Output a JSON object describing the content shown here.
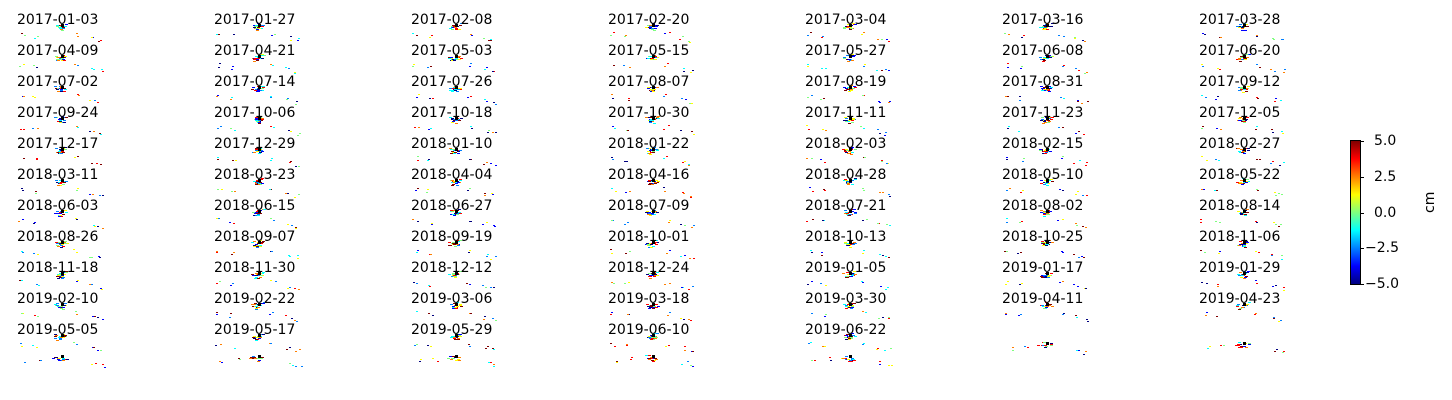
{
  "chart_data": {
    "type": "heatmap",
    "title": "",
    "panels": [
      "2017-01-03",
      "2017-01-27",
      "2017-02-08",
      "2017-02-20",
      "2017-03-04",
      "2017-03-16",
      "2017-03-28",
      "2017-04-09",
      "2017-04-21",
      "2017-05-03",
      "2017-05-15",
      "2017-05-27",
      "2017-06-08",
      "2017-06-20",
      "2017-07-02",
      "2017-07-14",
      "2017-07-26",
      "2017-08-07",
      "2017-08-19",
      "2017-08-31",
      "2017-09-12",
      "2017-09-24",
      "2017-10-06",
      "2017-10-18",
      "2017-10-30",
      "2017-11-11",
      "2017-11-23",
      "2017-12-05",
      "2017-12-17",
      "2017-12-29",
      "2018-01-10",
      "2018-01-22",
      "2018-02-03",
      "2018-02-15",
      "2018-02-27",
      "2018-03-11",
      "2018-03-23",
      "2018-04-04",
      "2018-04-16",
      "2018-04-28",
      "2018-05-10",
      "2018-05-22",
      "2018-06-03",
      "2018-06-15",
      "2018-06-27",
      "2018-07-09",
      "2018-07-21",
      "2018-08-02",
      "2018-08-14",
      "2018-08-26",
      "2018-09-07",
      "2018-09-19",
      "2018-10-01",
      "2018-10-13",
      "2018-10-25",
      "2018-11-06",
      "2018-11-18",
      "2018-11-30",
      "2018-12-12",
      "2018-12-24",
      "2019-01-05",
      "2019-01-17",
      "2019-01-29",
      "2019-02-10",
      "2019-02-22",
      "2019-03-06",
      "2019-03-18",
      "2019-03-30",
      "2019-04-11",
      "2019-04-23",
      "2019-05-05",
      "2019-05-17",
      "2019-05-29",
      "2019-06-10",
      "2019-06-22"
    ],
    "colorbar": {
      "label": "cm",
      "range": [
        -5.0,
        5.0
      ],
      "ticks": [
        "5.0",
        "2.5",
        "0.0",
        "−2.5",
        "−5.0"
      ],
      "tick_values": [
        5.0,
        2.5,
        0.0,
        -2.5,
        -5.0
      ],
      "colormap": [
        "#00007f",
        "#0000ff",
        "#007fff",
        "#00ffff",
        "#7fff7f",
        "#ffff00",
        "#ff7f00",
        "#ff0000",
        "#7f0000"
      ]
    },
    "grid": false
  }
}
